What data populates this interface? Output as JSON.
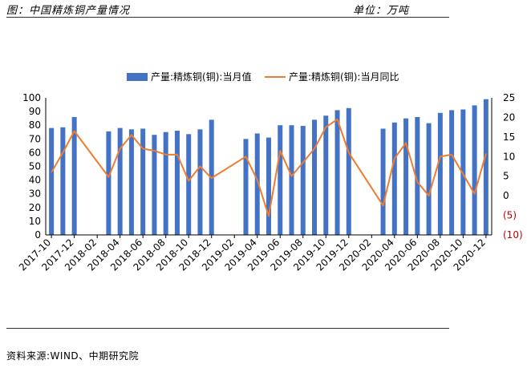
{
  "header": {
    "title": "图：中国精炼铜产量情况",
    "unit": "单位：万吨"
  },
  "footer": {
    "source": "资料来源:WIND、中期研究院"
  },
  "colors": {
    "bar": "#4472C4",
    "line": "#ED7D31",
    "negative_tick": "#C00000",
    "axis": "#000000"
  },
  "chart_data": {
    "type": "bar+line",
    "legend_position": "top",
    "grid": false,
    "x_months": [
      "2017-10",
      "2017-11",
      "2017-12",
      "2018-01",
      "2018-02",
      "2018-03",
      "2018-04",
      "2018-05",
      "2018-06",
      "2018-07",
      "2018-08",
      "2018-09",
      "2018-10",
      "2018-11",
      "2018-12",
      "2019-01",
      "2019-02",
      "2019-03",
      "2019-04",
      "2019-05",
      "2019-06",
      "2019-07",
      "2019-08",
      "2019-09",
      "2019-10",
      "2019-11",
      "2019-12",
      "2020-01",
      "2020-02",
      "2020-03",
      "2020-04",
      "2020-05",
      "2020-06",
      "2020-07",
      "2020-08",
      "2020-09",
      "2020-10",
      "2020-11",
      "2020-12"
    ],
    "x_tick_labels": [
      "2017-10",
      "2017-12",
      "2018-02",
      "2018-04",
      "2018-06",
      "2018-08",
      "2018-10",
      "2018-12",
      "2019-02",
      "2019-04",
      "2019-06",
      "2019-08",
      "2019-10",
      "2019-12",
      "2020-02",
      "2020-04",
      "2020-06",
      "2020-08",
      "2020-10",
      "2020-12"
    ],
    "y_left": {
      "min": 0,
      "max": 100,
      "ticks": [
        "0",
        "10",
        "20",
        "30",
        "40",
        "50",
        "60",
        "70",
        "80",
        "90",
        "100"
      ]
    },
    "y_right": {
      "min": -10,
      "max": 25,
      "ticks": [
        "(10)",
        "(5)",
        "0",
        "5",
        "10",
        "15",
        "20",
        "25"
      ]
    },
    "series": [
      {
        "name": "产量:精炼铜(铜):当月值",
        "type": "bar",
        "axis": "left",
        "values": [
          78,
          78.5,
          86,
          null,
          null,
          75.5,
          78,
          77,
          77.5,
          73,
          75,
          76,
          73.5,
          77,
          84,
          null,
          null,
          70,
          74,
          71,
          80,
          80,
          79.5,
          84,
          87,
          91,
          92.5,
          null,
          null,
          77.5,
          82,
          85,
          86,
          81.5,
          89,
          91,
          91.5,
          94.5,
          99
        ]
      },
      {
        "name": "产量:精炼铜(铜):当月同比",
        "type": "line",
        "axis": "right",
        "values": [
          6,
          11,
          16.5,
          null,
          null,
          4.8,
          12,
          15.5,
          12,
          11.5,
          10.5,
          10.5,
          3.8,
          7.5,
          4.5,
          null,
          null,
          10,
          4,
          -5.2,
          11.5,
          5,
          8.5,
          12,
          17.5,
          19.5,
          11,
          null,
          null,
          -2.5,
          9.5,
          13.5,
          3.5,
          0,
          10,
          10.5,
          5.5,
          0.5,
          10.8
        ]
      }
    ]
  }
}
